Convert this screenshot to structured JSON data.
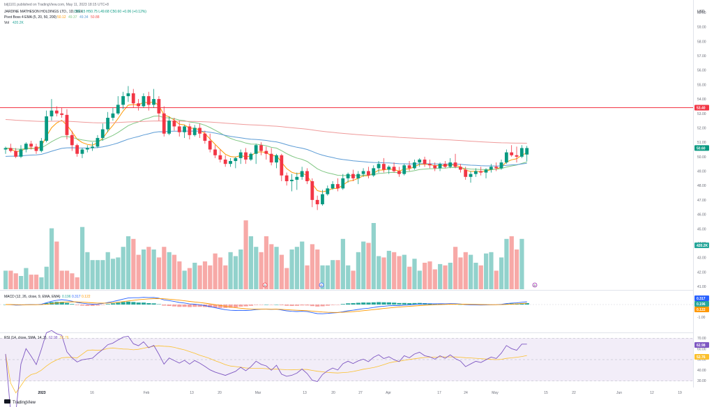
{
  "header": {
    "publisher": "bilj1101 published on TradingView.com, May 11, 2023 18:15 UTC+8",
    "symbol_line": "JARDINE MATHESON HOLDINGS LTD., 1D, SGX",
    "ohlc": "O50.15  H50.75  L49.68  C50.60  +0.06 (+0.12%)",
    "indicator_line": "Pivot Boss 4 EMA (5, 20, 50, 200)",
    "indicator_values": [
      "50.12",
      "49.37",
      "49.34",
      "50.88"
    ],
    "vol_label": "Vol",
    "vol_value": "420.2K",
    "currency": "USD"
  },
  "brand": "TradingView",
  "macd_panel": {
    "legend": "MACD (12, 26, close, 9, EMA, EMA)",
    "legend_values": [
      "0.196",
      "0.317",
      "0.122"
    ],
    "tags": [
      {
        "text": "0.317",
        "color": "#2962ff"
      },
      {
        "text": "0.196",
        "color": "#26a69a"
      },
      {
        "text": "0.122",
        "color": "#ff9800"
      }
    ],
    "axis_labels": [
      "1.00",
      "0.00",
      "-1.00"
    ]
  },
  "rsi_panel": {
    "legend": "RSI (14, close, SMA, 14, 2)",
    "legend_values": [
      "62.98",
      "52.76"
    ],
    "tags": [
      {
        "text": "62.98",
        "color": "#7e57c2"
      },
      {
        "text": "52.76",
        "color": "#fbc02d"
      }
    ],
    "axis_labels": [
      "70.00",
      "60.00",
      "50.00",
      "40.00",
      "30.00"
    ]
  },
  "price_tags": [
    {
      "text": "53.40",
      "color": "#f23645"
    },
    {
      "text": "50.60",
      "color": "#089981"
    }
  ],
  "volume_tag": {
    "text": "420.2K",
    "color": "#26a69a"
  },
  "event_markers": [
    "D",
    "D",
    "D"
  ],
  "chart_data": {
    "type": "candlestick",
    "price_axis": {
      "min": 41.0,
      "max": 60.0,
      "ticks": [
        "60.00",
        "59.00",
        "58.00",
        "57.00",
        "56.00",
        "55.00",
        "54.00",
        "53.00",
        "52.00",
        "51.00",
        "50.00",
        "49.00",
        "48.00",
        "47.00",
        "46.00",
        "45.00",
        "44.00",
        "43.00",
        "42.00",
        "41.00"
      ]
    },
    "x_axis_labels": [
      "2023",
      "16",
      "Feb",
      "13",
      "20",
      "Mar",
      "13",
      "20",
      "27",
      "Apr",
      "17",
      "24",
      "May",
      "15",
      "22",
      "Jun",
      "12",
      "19"
    ],
    "horizontal_line": 53.4,
    "candles": [
      [
        50.5,
        50.7,
        50.2,
        50.6
      ],
      [
        50.6,
        50.9,
        50.3,
        50.4
      ],
      [
        50.4,
        50.6,
        49.9,
        50.0
      ],
      [
        50.0,
        50.8,
        49.9,
        50.5
      ],
      [
        50.5,
        51.0,
        50.3,
        50.9
      ],
      [
        50.9,
        51.1,
        50.5,
        50.7
      ],
      [
        50.7,
        50.9,
        50.2,
        50.4
      ],
      [
        50.4,
        51.3,
        50.3,
        51.1
      ],
      [
        51.1,
        53.2,
        51.0,
        52.8
      ],
      [
        52.8,
        54.0,
        52.5,
        53.2
      ],
      [
        53.2,
        53.5,
        52.8,
        53.0
      ],
      [
        53.0,
        53.4,
        52.7,
        52.9
      ],
      [
        52.9,
        53.3,
        51.2,
        51.5
      ],
      [
        51.5,
        51.8,
        50.4,
        50.8
      ],
      [
        50.8,
        50.9,
        50.0,
        50.2
      ],
      [
        50.2,
        50.6,
        49.9,
        50.5
      ],
      [
        50.5,
        50.8,
        50.3,
        50.6
      ],
      [
        50.6,
        51.0,
        50.4,
        50.7
      ],
      [
        50.7,
        51.5,
        50.6,
        51.3
      ],
      [
        51.3,
        52.3,
        51.1,
        51.9
      ],
      [
        51.9,
        53.1,
        51.7,
        52.7
      ],
      [
        52.7,
        53.4,
        52.5,
        53.0
      ],
      [
        53.0,
        54.2,
        52.9,
        53.6
      ],
      [
        53.6,
        54.5,
        53.3,
        54.2
      ],
      [
        54.2,
        54.9,
        53.8,
        54.4
      ],
      [
        54.4,
        54.7,
        53.4,
        53.7
      ],
      [
        53.7,
        54.0,
        53.2,
        53.5
      ],
      [
        53.5,
        54.4,
        53.4,
        54.2
      ],
      [
        54.2,
        54.5,
        53.2,
        53.6
      ],
      [
        53.6,
        54.7,
        53.4,
        54.0
      ],
      [
        54.0,
        54.2,
        52.5,
        53.0
      ],
      [
        53.0,
        53.5,
        51.4,
        51.6
      ],
      [
        51.6,
        52.8,
        51.5,
        52.5
      ],
      [
        52.5,
        52.7,
        51.8,
        52.1
      ],
      [
        52.1,
        52.5,
        51.4,
        51.7
      ],
      [
        51.7,
        52.2,
        51.3,
        52.1
      ],
      [
        52.1,
        52.3,
        51.2,
        51.5
      ],
      [
        51.5,
        52.2,
        51.4,
        52.0
      ],
      [
        52.0,
        52.3,
        51.3,
        51.6
      ],
      [
        51.6,
        51.8,
        50.9,
        51.1
      ],
      [
        51.1,
        51.6,
        50.3,
        50.5
      ],
      [
        50.5,
        50.8,
        49.9,
        50.1
      ],
      [
        50.1,
        50.5,
        49.6,
        49.8
      ],
      [
        49.8,
        50.1,
        49.3,
        49.5
      ],
      [
        49.5,
        49.9,
        49.3,
        49.7
      ],
      [
        49.7,
        50.0,
        49.2,
        49.9
      ],
      [
        49.9,
        50.5,
        49.5,
        50.3
      ],
      [
        50.3,
        50.6,
        49.5,
        49.8
      ],
      [
        49.8,
        50.3,
        49.7,
        50.2
      ],
      [
        50.2,
        50.9,
        49.5,
        50.8
      ],
      [
        50.8,
        51.0,
        50.1,
        50.4
      ],
      [
        50.4,
        50.7,
        49.8,
        50.2
      ],
      [
        50.2,
        50.6,
        49.4,
        49.6
      ],
      [
        49.6,
        50.2,
        49.2,
        50.1
      ],
      [
        50.1,
        50.2,
        48.3,
        48.7
      ],
      [
        48.7,
        48.9,
        48.0,
        48.3
      ],
      [
        48.3,
        48.8,
        47.6,
        48.4
      ],
      [
        48.4,
        48.9,
        47.7,
        48.6
      ],
      [
        48.6,
        49.3,
        48.4,
        49.0
      ],
      [
        49.0,
        49.2,
        48.1,
        48.3
      ],
      [
        48.3,
        48.5,
        46.5,
        47.0
      ],
      [
        47.0,
        47.3,
        46.3,
        46.7
      ],
      [
        46.7,
        47.7,
        46.6,
        47.4
      ],
      [
        47.4,
        48.0,
        47.3,
        47.8
      ],
      [
        47.8,
        48.3,
        47.7,
        48.1
      ],
      [
        48.1,
        48.5,
        47.6,
        47.8
      ],
      [
        47.8,
        48.8,
        47.7,
        48.5
      ],
      [
        48.5,
        48.9,
        48.2,
        48.8
      ],
      [
        48.8,
        49.1,
        48.3,
        48.5
      ],
      [
        48.5,
        49.0,
        48.1,
        48.8
      ],
      [
        48.8,
        49.2,
        48.6,
        49.0
      ],
      [
        49.0,
        49.3,
        48.5,
        48.7
      ],
      [
        48.7,
        49.4,
        48.6,
        49.2
      ],
      [
        49.2,
        49.7,
        48.9,
        49.5
      ],
      [
        49.5,
        49.9,
        48.9,
        49.1
      ],
      [
        49.1,
        49.4,
        48.8,
        49.3
      ],
      [
        49.3,
        49.6,
        48.9,
        49.0
      ],
      [
        49.0,
        49.3,
        48.6,
        48.8
      ],
      [
        48.8,
        49.5,
        48.7,
        49.4
      ],
      [
        49.4,
        49.7,
        49.0,
        49.2
      ],
      [
        49.2,
        49.8,
        49.1,
        49.6
      ],
      [
        49.6,
        49.9,
        49.3,
        49.8
      ],
      [
        49.8,
        50.0,
        49.3,
        49.5
      ],
      [
        49.5,
        49.8,
        49.2,
        49.4
      ],
      [
        49.4,
        49.6,
        49.0,
        49.2
      ],
      [
        49.2,
        49.6,
        49.0,
        49.5
      ],
      [
        49.5,
        49.7,
        49.2,
        49.3
      ],
      [
        49.3,
        49.9,
        49.2,
        49.6
      ],
      [
        49.6,
        50.2,
        49.2,
        49.3
      ],
      [
        49.3,
        49.5,
        48.9,
        49.1
      ],
      [
        49.1,
        49.3,
        48.4,
        48.6
      ],
      [
        48.6,
        49.0,
        48.2,
        48.8
      ],
      [
        48.8,
        49.2,
        48.6,
        49.0
      ],
      [
        49.0,
        49.3,
        48.7,
        48.9
      ],
      [
        48.9,
        49.2,
        48.5,
        49.1
      ],
      [
        49.1,
        49.5,
        48.9,
        49.3
      ],
      [
        49.3,
        49.6,
        49.0,
        49.2
      ],
      [
        49.2,
        49.8,
        49.1,
        49.6
      ],
      [
        49.6,
        50.5,
        49.5,
        50.3
      ],
      [
        50.3,
        50.8,
        50.0,
        50.1
      ],
      [
        50.1,
        50.7,
        49.6,
        50.0
      ],
      [
        50.0,
        50.8,
        49.9,
        50.6
      ],
      [
        50.15,
        50.75,
        49.68,
        50.6
      ]
    ],
    "volume": [
      14,
      14,
      12,
      10,
      16,
      11,
      11,
      9,
      17,
      46,
      36,
      14,
      14,
      12,
      9,
      47,
      28,
      22,
      22,
      22,
      28,
      23,
      24,
      32,
      40,
      38,
      26,
      30,
      32,
      30,
      24,
      32,
      28,
      26,
      21,
      14,
      16,
      20,
      18,
      21,
      18,
      27,
      24,
      18,
      28,
      25,
      30,
      52,
      40,
      32,
      28,
      40,
      34,
      32,
      26,
      16,
      30,
      32,
      36,
      18,
      34,
      30,
      18,
      18,
      22,
      22,
      38,
      18,
      14,
      28,
      36,
      35,
      50,
      25,
      24,
      29,
      28,
      25,
      26,
      17,
      23,
      14,
      20,
      21,
      15,
      19,
      18,
      20,
      32,
      24,
      28,
      26,
      20,
      18,
      27,
      28,
      14,
      24,
      38,
      40,
      30,
      38
    ],
    "series": [
      {
        "name": "EMA 5",
        "color": "#ff9800"
      },
      {
        "name": "EMA 20",
        "color": "#81c784"
      },
      {
        "name": "EMA 50",
        "color": "#5b9bd5"
      },
      {
        "name": "EMA 200",
        "color": "#ef9a9a"
      }
    ],
    "rsi": {
      "overbought": 70,
      "oversold": 30,
      "midline": 50,
      "last": 62.98,
      "signal_last": 52.76
    },
    "macd": {
      "macd_last": 0.317,
      "signal_last": 0.122,
      "hist_last": 0.196
    }
  }
}
